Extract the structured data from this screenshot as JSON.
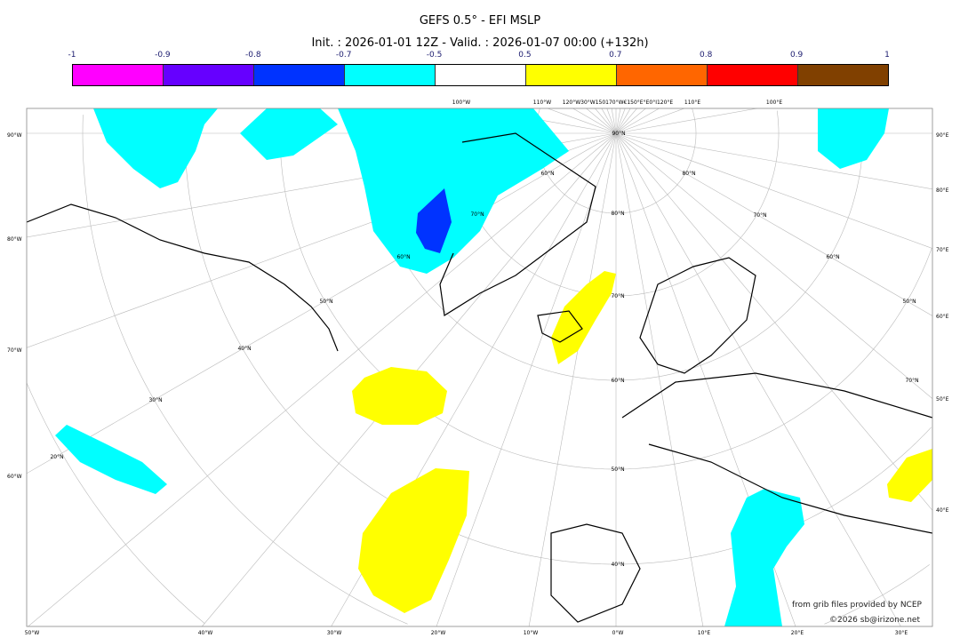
{
  "title": "GEFS 0.5° - EFI MSLP",
  "subtitle": "Init. : 2026-01-01 12Z - Valid. : 2026-01-07 00:00 (+132h)",
  "colorbar": {
    "ticks": [
      "-1",
      "-0.9",
      "-0.8",
      "-0.7",
      "-0.5",
      "0.5",
      "0.7",
      "0.8",
      "0.9",
      "1"
    ],
    "colors": [
      "#ff00ff",
      "#6600ff",
      "#0033ff",
      "#00ffff",
      "#ffffff",
      "#ffff00",
      "#ff6600",
      "#ff0000",
      "#804000"
    ]
  },
  "axes": {
    "left": [
      "90°W",
      "80°W",
      "70°W",
      "60°W"
    ],
    "right": [
      "90°E",
      "80°E",
      "70°E",
      "60°E",
      "50°E",
      "40°E"
    ],
    "bottom": [
      "50°W",
      "40°W",
      "30°W",
      "20°W",
      "10°W",
      "0°W",
      "10°E",
      "20°E",
      "30°E"
    ],
    "top": [
      "100°W",
      "110°W",
      "120°W30°W150170°W€150°E°E0°I120°E",
      "110°E",
      "100°E"
    ],
    "interior": [
      "90°N",
      "80°N",
      "70°N",
      "60°N",
      "50°N",
      "40°N",
      "70°N",
      "60°N",
      "50°N",
      "40°N",
      "30°N",
      "20°N",
      "80°N",
      "70°N",
      "60°N",
      "50°N",
      "60°N",
      "70°N"
    ]
  },
  "credits": {
    "source": "from grib files provided by NCEP",
    "copyright": "©2026 sb@irizone.net"
  }
}
